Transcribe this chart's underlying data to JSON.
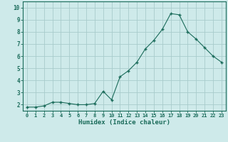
{
  "x": [
    0,
    1,
    2,
    3,
    4,
    5,
    6,
    7,
    8,
    9,
    10,
    11,
    12,
    13,
    14,
    15,
    16,
    17,
    18,
    19,
    20,
    21,
    22,
    23
  ],
  "y": [
    1.8,
    1.8,
    1.9,
    2.2,
    2.2,
    2.1,
    2.0,
    2.0,
    2.1,
    3.1,
    2.4,
    4.3,
    4.8,
    5.5,
    6.6,
    7.3,
    8.2,
    9.5,
    9.4,
    8.0,
    7.4,
    6.7,
    6.0,
    5.5
  ],
  "xlabel": "Humidex (Indice chaleur)",
  "xlim": [
    -0.5,
    23.5
  ],
  "ylim": [
    1.5,
    10.5
  ],
  "line_color": "#1a6b5a",
  "marker_color": "#1a6b5a",
  "bg_color": "#ceeaea",
  "grid_color": "#a8cccc",
  "tick_label_color": "#1a6b5a",
  "axis_color": "#1a6b5a",
  "yticks": [
    2,
    3,
    4,
    5,
    6,
    7,
    8,
    9,
    10
  ],
  "xtick_labels": [
    "0",
    "1",
    "2",
    "3",
    "4",
    "5",
    "6",
    "7",
    "8",
    "9",
    "10",
    "11",
    "12",
    "13",
    "14",
    "15",
    "16",
    "17",
    "18",
    "19",
    "20",
    "21",
    "22",
    "23"
  ]
}
